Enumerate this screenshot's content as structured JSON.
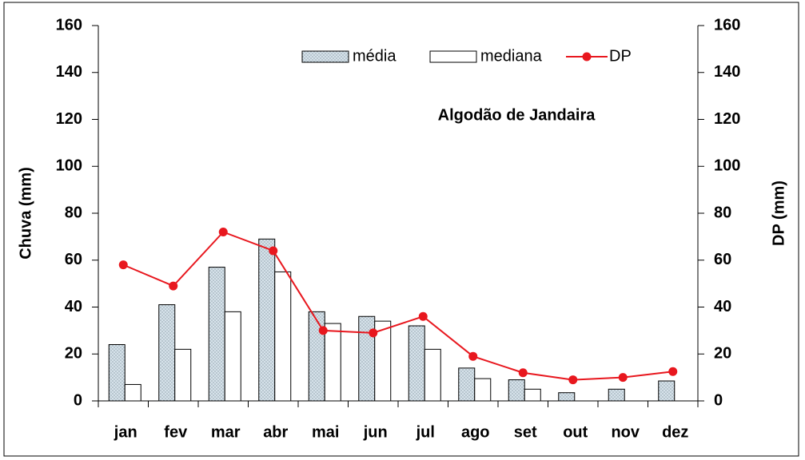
{
  "chart_data": {
    "type": "bar",
    "title": "Algodão de Jandaira",
    "y_label": "Chuva (mm)",
    "y2_label": "DP (mm)",
    "categories": [
      "jan",
      "fev",
      "mar",
      "abr",
      "mai",
      "jun",
      "jul",
      "ago",
      "set",
      "out",
      "nov",
      "dez"
    ],
    "series": [
      {
        "name": "média",
        "type": "bar",
        "color": "#d6e2ea",
        "pattern": "dots",
        "values": [
          24,
          41,
          57,
          69,
          38,
          36,
          32,
          14,
          9,
          3.5,
          5,
          8.5
        ]
      },
      {
        "name": "mediana",
        "type": "bar",
        "color": "#ffffff",
        "values": [
          7,
          22,
          38,
          55,
          33,
          34,
          22,
          9.5,
          5,
          0,
          0,
          0
        ]
      },
      {
        "name": "DP",
        "type": "line",
        "axis": "y2",
        "color": "#e8171e",
        "values": [
          58,
          49,
          72,
          64,
          30,
          29,
          36,
          19,
          12,
          9,
          10,
          12.5
        ]
      }
    ],
    "ylim": [
      0,
      160
    ],
    "yticks": [
      0,
      20,
      40,
      60,
      80,
      100,
      120,
      140,
      160
    ],
    "y2lim": [
      0,
      160
    ],
    "y2ticks": [
      0,
      20,
      40,
      60,
      80,
      100,
      120,
      140,
      160
    ],
    "grid": false,
    "legend": "top"
  }
}
